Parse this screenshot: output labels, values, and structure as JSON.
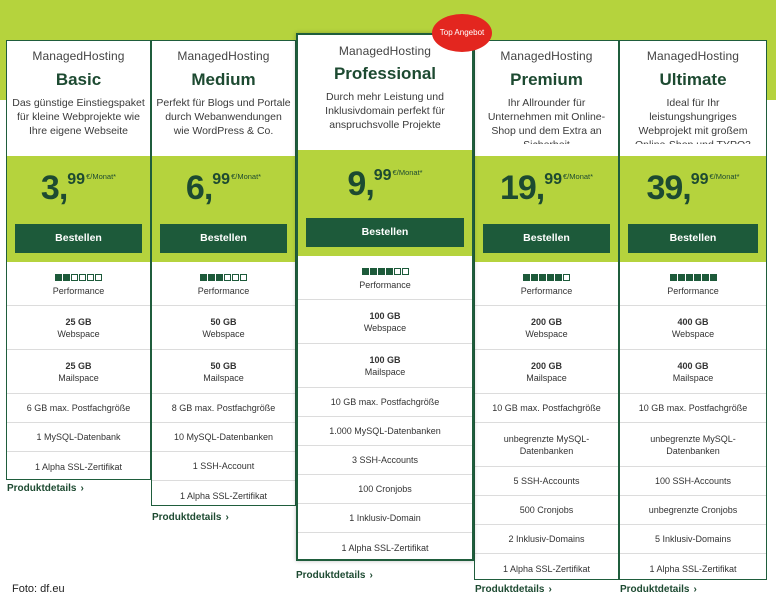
{
  "badge": "Top Angebot",
  "credit": "Foto: df.eu",
  "order_label": "Bestellen",
  "details_label": "Produktdetails",
  "details_chevron": "›",
  "price_unit": "€/Monat*",
  "perf_label": "Performance",
  "plans": [
    {
      "sub": "ManagedHosting",
      "name": "Basic",
      "desc": "Das günstige Einstiegspaket für kleine Webprojekte wie Ihre eigene Webseite",
      "price_int": "3,",
      "price_dec": "99",
      "performance_level": 2,
      "performance_max": 6,
      "webspace": "25 GB",
      "webspace_label": "Webspace",
      "mailspace": "25 GB",
      "mailspace_label": "Mailspace",
      "features": [
        "6 GB max. Postfachgröße",
        "1 MySQL-Datenbank",
        "1 Alpha SSL-Zertifikat"
      ]
    },
    {
      "sub": "ManagedHosting",
      "name": "Medium",
      "desc": "Perfekt für Blogs und Portale durch Webanwendungen wie WordPress & Co.",
      "price_int": "6,",
      "price_dec": "99",
      "performance_level": 3,
      "performance_max": 6,
      "webspace": "50 GB",
      "webspace_label": "Webspace",
      "mailspace": "50 GB",
      "mailspace_label": "Mailspace",
      "features": [
        "8 GB max. Postfachgröße",
        "10 MySQL-Datenbanken",
        "1 SSH-Account",
        "1 Alpha SSL-Zertifikat"
      ]
    },
    {
      "sub": "ManagedHosting",
      "name": "Professional",
      "desc": "Durch mehr Leistung und Inklusivdomain perfekt für anspruchsvolle Projekte",
      "price_int": "9,",
      "price_dec": "99",
      "performance_level": 4,
      "performance_max": 6,
      "webspace": "100 GB",
      "webspace_label": "Webspace",
      "mailspace": "100 GB",
      "mailspace_label": "Mailspace",
      "features": [
        "10 GB max. Postfachgröße",
        "1.000 MySQL-Datenbanken",
        "3 SSH-Accounts",
        "100 Cronjobs",
        "1 Inklusiv-Domain",
        "1 Alpha SSL-Zertifikat"
      ]
    },
    {
      "sub": "ManagedHosting",
      "name": "Premium",
      "desc": "Ihr Allrounder für Unternehmen mit Online-Shop und dem Extra an Sicherheit",
      "price_int": "19,",
      "price_dec": "99",
      "performance_level": 5,
      "performance_max": 6,
      "webspace": "200 GB",
      "webspace_label": "Webspace",
      "mailspace": "200 GB",
      "mailspace_label": "Mailspace",
      "features": [
        "10 GB max. Postfachgröße",
        "unbegrenzte MySQL-Datenbanken",
        "5 SSH-Accounts",
        "500 Cronjobs",
        "2 Inklusiv-Domains",
        "1 Alpha SSL-Zertifikat"
      ]
    },
    {
      "sub": "ManagedHosting",
      "name": "Ultimate",
      "desc": "Ideal für Ihr leistungshungriges Webprojekt mit großem Online-Shop und TYPO3",
      "price_int": "39,",
      "price_dec": "99",
      "performance_level": 6,
      "performance_max": 6,
      "webspace": "400 GB",
      "webspace_label": "Webspace",
      "mailspace": "400 GB",
      "mailspace_label": "Mailspace",
      "features": [
        "10 GB max. Postfachgröße",
        "unbegrenzte MySQL-Datenbanken",
        "100 SSH-Accounts",
        "unbegrenzte Cronjobs",
        "5 Inklusiv-Domains",
        "1 Alpha SSL-Zertifikat"
      ]
    }
  ]
}
